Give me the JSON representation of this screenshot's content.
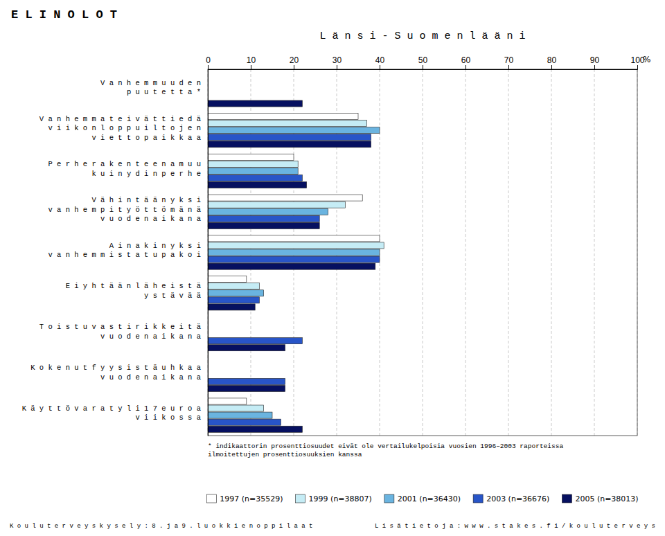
{
  "chart_data": {
    "type": "bar",
    "orientation": "horizontal",
    "title": "L ä n s i - S u o m e n   l ä ä n i",
    "x_label": "%",
    "categories": [
      "V a n h e m m u u d e n\np u u t e t t a *",
      "V a n h e m m a t  e i v ä t  t i e d ä\nv i i k o n l o p p u i l t o j e n\nv i e t t o p a i k k a a",
      "P e r h e r a k e n t e e n a  m u u\nk u i n  y d i n p e r h e",
      "V ä h i n t ä ä n  y k s i\nv a n h e m p i  t y ö t t ö m ä n ä\nv u o d e n  a i k a n a",
      "A i n a k i n  y k s i\nv a n h e m m i s t a  t u p a k o i",
      "E i  y h t ä ä n  l ä h e i s t ä\ny s t ä v ä ä",
      "T o i s t u v a s t i  r i k k e i t ä\nv u o d e n  a i k a n a",
      "K o k e n u t  f y y s i s t ä  u h k a a\nv u o d e n  a i k a n a",
      "K ä y t t ö v a r a t  y l i  1 7  e u r o a\nv i i k o s s a"
    ],
    "series": [
      {
        "name": "1997 (n=35529)",
        "color": "#ffffff",
        "values": [
          null,
          35,
          20,
          36,
          40,
          9,
          null,
          null,
          9
        ]
      },
      {
        "name": "1999 (n=38807)",
        "color": "#c5ecf5",
        "values": [
          null,
          37,
          21,
          32,
          41,
          12,
          null,
          null,
          13
        ]
      },
      {
        "name": "2001 (n=36430)",
        "color": "#6ab4e0",
        "values": [
          null,
          40,
          21,
          28,
          40,
          13,
          null,
          null,
          15
        ]
      },
      {
        "name": "2003 (n=36676)",
        "color": "#2855c8",
        "values": [
          null,
          38,
          22,
          26,
          40,
          12,
          22,
          18,
          17
        ]
      },
      {
        "name": "2005 (n=38013)",
        "color": "#061060",
        "values": [
          22,
          38,
          23,
          26,
          39,
          11,
          18,
          18,
          22
        ]
      }
    ],
    "xlim": [
      0,
      100
    ],
    "xticks": [
      0,
      10,
      20,
      30,
      40,
      50,
      60,
      70,
      80,
      90,
      100
    ],
    "grid": true,
    "legend": "bottom",
    "annotations": [
      "E L I N O L O T",
      "* indikaattorin prosenttiosuudet eivät ole vertailukelpoisia vuosien 1996–2003 raporteissa\nilmoitettujen prosenttiosuuksien kanssa",
      "K o u l u t e r v e y s k y s e l y :  8 .  j a  9 .  l u o k k i e n  o p p i l a a t",
      "L i s ä t i e t o j a :  w w w . s t a k e s . f i / k o u l u t e r v e y s"
    ]
  }
}
